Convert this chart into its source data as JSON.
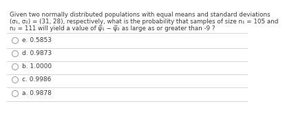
{
  "q1": "Given two normally distributed populations with equal means and standard deviations",
  "q2": "(σ₁, σ₂) = (31, 28), respectively, what is the probability that samples of size n₁ = 105 and",
  "q3": "n₂ = 111 will yield a value of ψ̅₁ − ψ̅₂ as large as or greater than -9 ?",
  "options": [
    "e. 0.5853",
    "d. 0.9873",
    "b. 1.0000",
    "c. 0.9986",
    "a. 0.9878"
  ],
  "bg_color": "#ffffff",
  "text_color": "#3a3a3a",
  "circle_color": "#999999",
  "line_color": "#d0d0d0",
  "font_size_q": 6.3,
  "font_size_opt": 6.5
}
